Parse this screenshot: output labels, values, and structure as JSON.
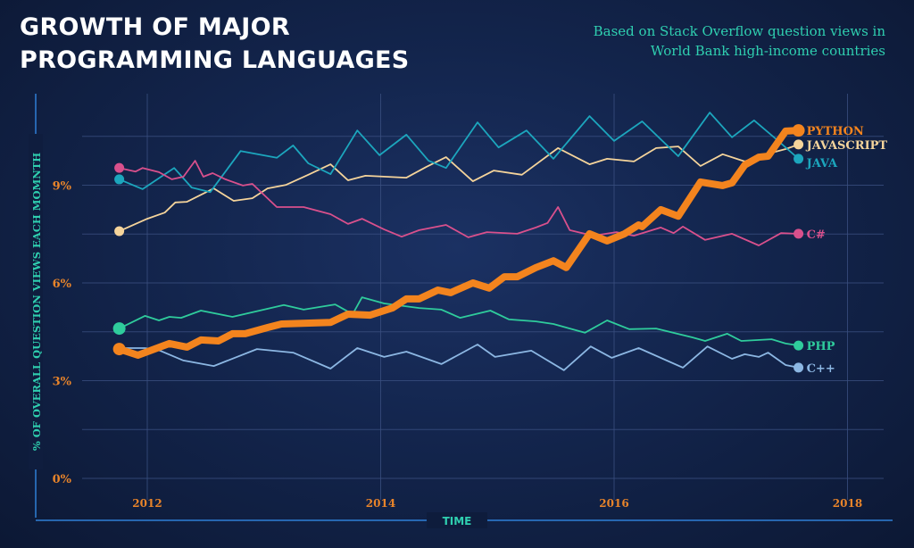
{
  "header": {
    "title_line1": "GROWTH OF MAJOR",
    "title_line2": "PROGRAMMING LANGUAGES",
    "subtitle_line1": "Based on Stack Overflow question views in",
    "subtitle_line2": "World Bank high-income countries"
  },
  "chart_data": {
    "type": "line",
    "title": "GROWTH OF MAJOR PROGRAMMING LANGUAGES",
    "subtitle": "Based on Stack Overflow question views in World Bank high-income countries",
    "xlabel": "TIME",
    "ylabel": "% OF OVERALL QUESTION VIEWS EACH MOMNTH",
    "xlim": [
      2011.3,
      2018.3
    ],
    "ylim": [
      0,
      10.5
    ],
    "x_ticks": [
      2012,
      2014,
      2016,
      2018
    ],
    "x_tick_labels": [
      "2012",
      "2014",
      "2016",
      "2018"
    ],
    "y_ticks": [
      0,
      3,
      6,
      9
    ],
    "y_tick_labels": [
      "0%",
      "3%",
      "6%",
      "9%"
    ],
    "y_minor_gridlines": [
      1.5,
      4.5,
      7.5,
      10.5
    ],
    "grid": true,
    "legend": "end-of-line labels",
    "series": [
      {
        "name": "PYTHON",
        "color": "#f3841e",
        "emphasis": true,
        "points": [
          [
            2011.76,
            3.97
          ],
          [
            2011.92,
            3.78
          ],
          [
            2012.19,
            4.14
          ],
          [
            2012.34,
            4.03
          ],
          [
            2012.46,
            4.25
          ],
          [
            2012.61,
            4.22
          ],
          [
            2012.73,
            4.44
          ],
          [
            2012.84,
            4.44
          ],
          [
            2013.03,
            4.63
          ],
          [
            2013.15,
            4.74
          ],
          [
            2013.57,
            4.79
          ],
          [
            2013.72,
            5.04
          ],
          [
            2013.91,
            5.01
          ],
          [
            2014.1,
            5.23
          ],
          [
            2014.22,
            5.51
          ],
          [
            2014.33,
            5.51
          ],
          [
            2014.49,
            5.78
          ],
          [
            2014.6,
            5.7
          ],
          [
            2014.79,
            6.0
          ],
          [
            2014.93,
            5.84
          ],
          [
            2015.06,
            6.19
          ],
          [
            2015.17,
            6.19
          ],
          [
            2015.33,
            6.47
          ],
          [
            2015.48,
            6.68
          ],
          [
            2015.59,
            6.47
          ],
          [
            2015.79,
            7.51
          ],
          [
            2015.94,
            7.29
          ],
          [
            2016.09,
            7.51
          ],
          [
            2016.21,
            7.78
          ],
          [
            2016.24,
            7.73
          ],
          [
            2016.4,
            8.25
          ],
          [
            2016.55,
            8.05
          ],
          [
            2016.74,
            9.1
          ],
          [
            2016.93,
            8.99
          ],
          [
            2017.01,
            9.07
          ],
          [
            2017.12,
            9.62
          ],
          [
            2017.24,
            9.86
          ],
          [
            2017.32,
            9.89
          ],
          [
            2017.47,
            10.66
          ],
          [
            2017.58,
            10.68
          ]
        ]
      },
      {
        "name": "JAVASCRIPT",
        "color": "#f5d49b",
        "points": [
          [
            2011.76,
            7.59
          ],
          [
            2012.0,
            7.97
          ],
          [
            2012.15,
            8.16
          ],
          [
            2012.24,
            8.47
          ],
          [
            2012.34,
            8.49
          ],
          [
            2012.57,
            8.9
          ],
          [
            2012.74,
            8.52
          ],
          [
            2012.9,
            8.6
          ],
          [
            2013.03,
            8.9
          ],
          [
            2013.19,
            9.01
          ],
          [
            2013.38,
            9.32
          ],
          [
            2013.57,
            9.64
          ],
          [
            2013.72,
            9.15
          ],
          [
            2013.87,
            9.29
          ],
          [
            2014.22,
            9.23
          ],
          [
            2014.39,
            9.56
          ],
          [
            2014.56,
            9.86
          ],
          [
            2014.79,
            9.12
          ],
          [
            2014.97,
            9.45
          ],
          [
            2015.21,
            9.32
          ],
          [
            2015.52,
            10.14
          ],
          [
            2015.79,
            9.64
          ],
          [
            2015.94,
            9.81
          ],
          [
            2016.17,
            9.73
          ],
          [
            2016.36,
            10.14
          ],
          [
            2016.55,
            10.19
          ],
          [
            2016.74,
            9.59
          ],
          [
            2016.93,
            9.95
          ],
          [
            2017.12,
            9.73
          ],
          [
            2017.32,
            9.97
          ],
          [
            2017.47,
            10.11
          ],
          [
            2017.58,
            10.25
          ]
        ]
      },
      {
        "name": "JAVA",
        "color": "#1ca6bd",
        "points": [
          [
            2011.76,
            9.18
          ],
          [
            2011.96,
            8.88
          ],
          [
            2012.23,
            9.53
          ],
          [
            2012.38,
            8.93
          ],
          [
            2012.54,
            8.79
          ],
          [
            2012.8,
            10.05
          ],
          [
            2013.11,
            9.84
          ],
          [
            2013.25,
            10.22
          ],
          [
            2013.38,
            9.67
          ],
          [
            2013.57,
            9.34
          ],
          [
            2013.8,
            10.68
          ],
          [
            2013.99,
            9.92
          ],
          [
            2014.22,
            10.55
          ],
          [
            2014.41,
            9.75
          ],
          [
            2014.56,
            9.53
          ],
          [
            2014.83,
            10.93
          ],
          [
            2015.01,
            10.16
          ],
          [
            2015.25,
            10.68
          ],
          [
            2015.48,
            9.81
          ],
          [
            2015.79,
            11.12
          ],
          [
            2016.0,
            10.36
          ],
          [
            2016.24,
            10.96
          ],
          [
            2016.55,
            9.89
          ],
          [
            2016.82,
            11.23
          ],
          [
            2017.01,
            10.47
          ],
          [
            2017.2,
            10.99
          ],
          [
            2017.39,
            10.41
          ],
          [
            2017.58,
            9.81
          ]
        ]
      },
      {
        "name": "C#",
        "color": "#d9508c",
        "points": [
          [
            2011.76,
            9.53
          ],
          [
            2011.9,
            9.42
          ],
          [
            2011.96,
            9.53
          ],
          [
            2012.1,
            9.4
          ],
          [
            2012.21,
            9.18
          ],
          [
            2012.31,
            9.26
          ],
          [
            2012.41,
            9.75
          ],
          [
            2012.48,
            9.26
          ],
          [
            2012.56,
            9.37
          ],
          [
            2012.67,
            9.18
          ],
          [
            2012.82,
            8.99
          ],
          [
            2012.9,
            9.04
          ],
          [
            2013.03,
            8.6
          ],
          [
            2013.11,
            8.33
          ],
          [
            2013.34,
            8.33
          ],
          [
            2013.57,
            8.11
          ],
          [
            2013.72,
            7.81
          ],
          [
            2013.84,
            7.97
          ],
          [
            2014.03,
            7.64
          ],
          [
            2014.18,
            7.42
          ],
          [
            2014.33,
            7.62
          ],
          [
            2014.56,
            7.78
          ],
          [
            2014.75,
            7.4
          ],
          [
            2014.91,
            7.56
          ],
          [
            2015.17,
            7.51
          ],
          [
            2015.33,
            7.7
          ],
          [
            2015.43,
            7.84
          ],
          [
            2015.52,
            8.33
          ],
          [
            2015.62,
            7.62
          ],
          [
            2015.82,
            7.45
          ],
          [
            2016.02,
            7.56
          ],
          [
            2016.17,
            7.45
          ],
          [
            2016.4,
            7.7
          ],
          [
            2016.51,
            7.53
          ],
          [
            2016.59,
            7.73
          ],
          [
            2016.78,
            7.32
          ],
          [
            2017.01,
            7.51
          ],
          [
            2017.24,
            7.15
          ],
          [
            2017.43,
            7.53
          ],
          [
            2017.58,
            7.51
          ]
        ]
      },
      {
        "name": "PHP",
        "color": "#2fcc9c",
        "points": [
          [
            2011.76,
            4.6
          ],
          [
            2011.98,
            4.99
          ],
          [
            2012.1,
            4.85
          ],
          [
            2012.19,
            4.96
          ],
          [
            2012.29,
            4.93
          ],
          [
            2012.46,
            5.15
          ],
          [
            2012.73,
            4.96
          ],
          [
            2013.17,
            5.32
          ],
          [
            2013.34,
            5.18
          ],
          [
            2013.61,
            5.34
          ],
          [
            2013.76,
            5.04
          ],
          [
            2013.84,
            5.56
          ],
          [
            2014.03,
            5.37
          ],
          [
            2014.33,
            5.23
          ],
          [
            2014.52,
            5.18
          ],
          [
            2014.68,
            4.93
          ],
          [
            2014.94,
            5.15
          ],
          [
            2015.1,
            4.88
          ],
          [
            2015.33,
            4.82
          ],
          [
            2015.48,
            4.74
          ],
          [
            2015.75,
            4.47
          ],
          [
            2015.94,
            4.85
          ],
          [
            2016.13,
            4.58
          ],
          [
            2016.36,
            4.6
          ],
          [
            2016.67,
            4.33
          ],
          [
            2016.78,
            4.22
          ],
          [
            2016.97,
            4.44
          ],
          [
            2017.09,
            4.22
          ],
          [
            2017.35,
            4.27
          ],
          [
            2017.47,
            4.14
          ],
          [
            2017.58,
            4.08
          ]
        ]
      },
      {
        "name": "C++",
        "color": "#8cb7e3",
        "points": [
          [
            2011.76,
            4.0
          ],
          [
            2011.98,
            4.0
          ],
          [
            2012.11,
            3.92
          ],
          [
            2012.31,
            3.62
          ],
          [
            2012.57,
            3.45
          ],
          [
            2012.94,
            3.97
          ],
          [
            2013.25,
            3.86
          ],
          [
            2013.57,
            3.37
          ],
          [
            2013.8,
            4.0
          ],
          [
            2014.03,
            3.73
          ],
          [
            2014.22,
            3.89
          ],
          [
            2014.52,
            3.51
          ],
          [
            2014.83,
            4.11
          ],
          [
            2014.98,
            3.73
          ],
          [
            2015.29,
            3.92
          ],
          [
            2015.57,
            3.32
          ],
          [
            2015.8,
            4.05
          ],
          [
            2015.98,
            3.7
          ],
          [
            2016.21,
            4.0
          ],
          [
            2016.59,
            3.4
          ],
          [
            2016.8,
            4.05
          ],
          [
            2017.01,
            3.67
          ],
          [
            2017.12,
            3.81
          ],
          [
            2017.24,
            3.73
          ],
          [
            2017.32,
            3.86
          ],
          [
            2017.47,
            3.48
          ],
          [
            2017.58,
            3.4
          ]
        ]
      }
    ]
  },
  "colors": {
    "axis_label": "#2fcfb0",
    "tick_label": "#e8842a",
    "axis_line": "#2f7fd6",
    "grid": "#3a4f80"
  }
}
